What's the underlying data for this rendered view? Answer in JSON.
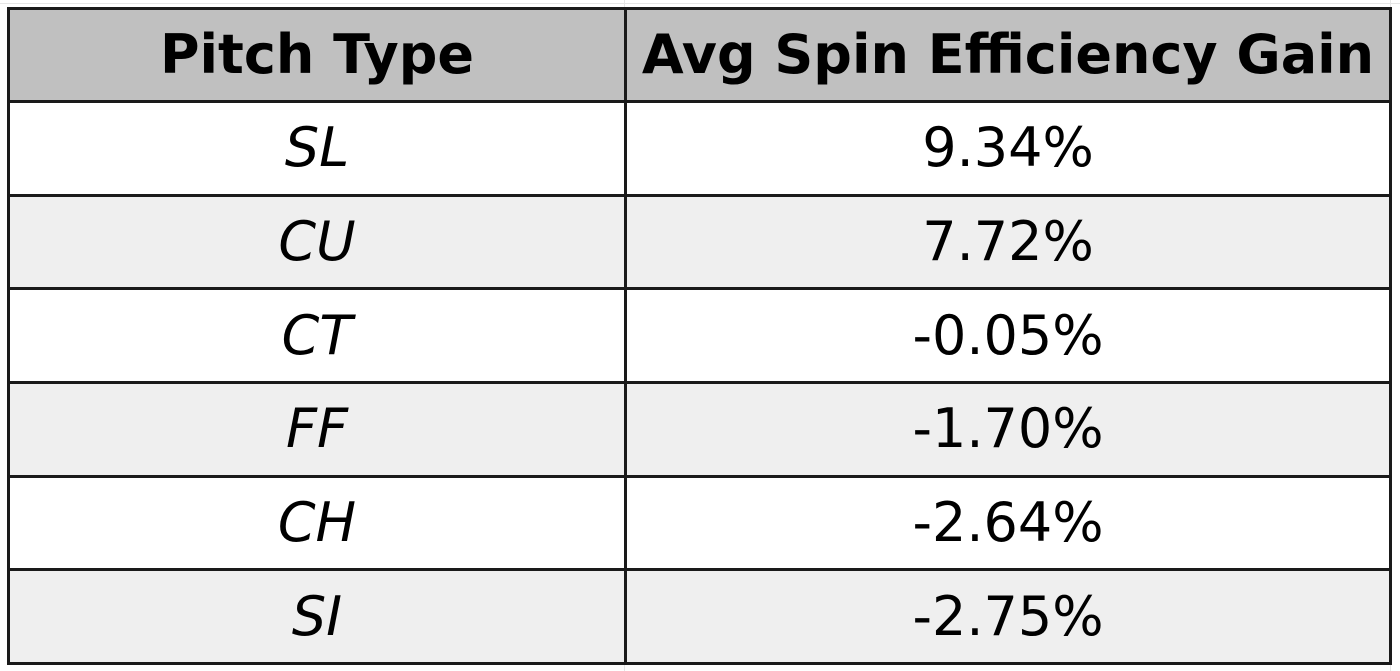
{
  "table": {
    "headers": [
      "Pitch Type",
      "Avg Spin Efficiency Gain"
    ],
    "rows": [
      {
        "pitch": "SL",
        "gain": "9.34%"
      },
      {
        "pitch": "CU",
        "gain": "7.72%"
      },
      {
        "pitch": "CT",
        "gain": "-0.05%"
      },
      {
        "pitch": "FF",
        "gain": "-1.70%"
      },
      {
        "pitch": "CH",
        "gain": "-2.64%"
      },
      {
        "pitch": "SI",
        "gain": "-2.75%"
      }
    ]
  },
  "colors": {
    "header_bg": "#c0c0c0",
    "row_alt_bg": "#efefef",
    "border": "#1a1a1a"
  }
}
